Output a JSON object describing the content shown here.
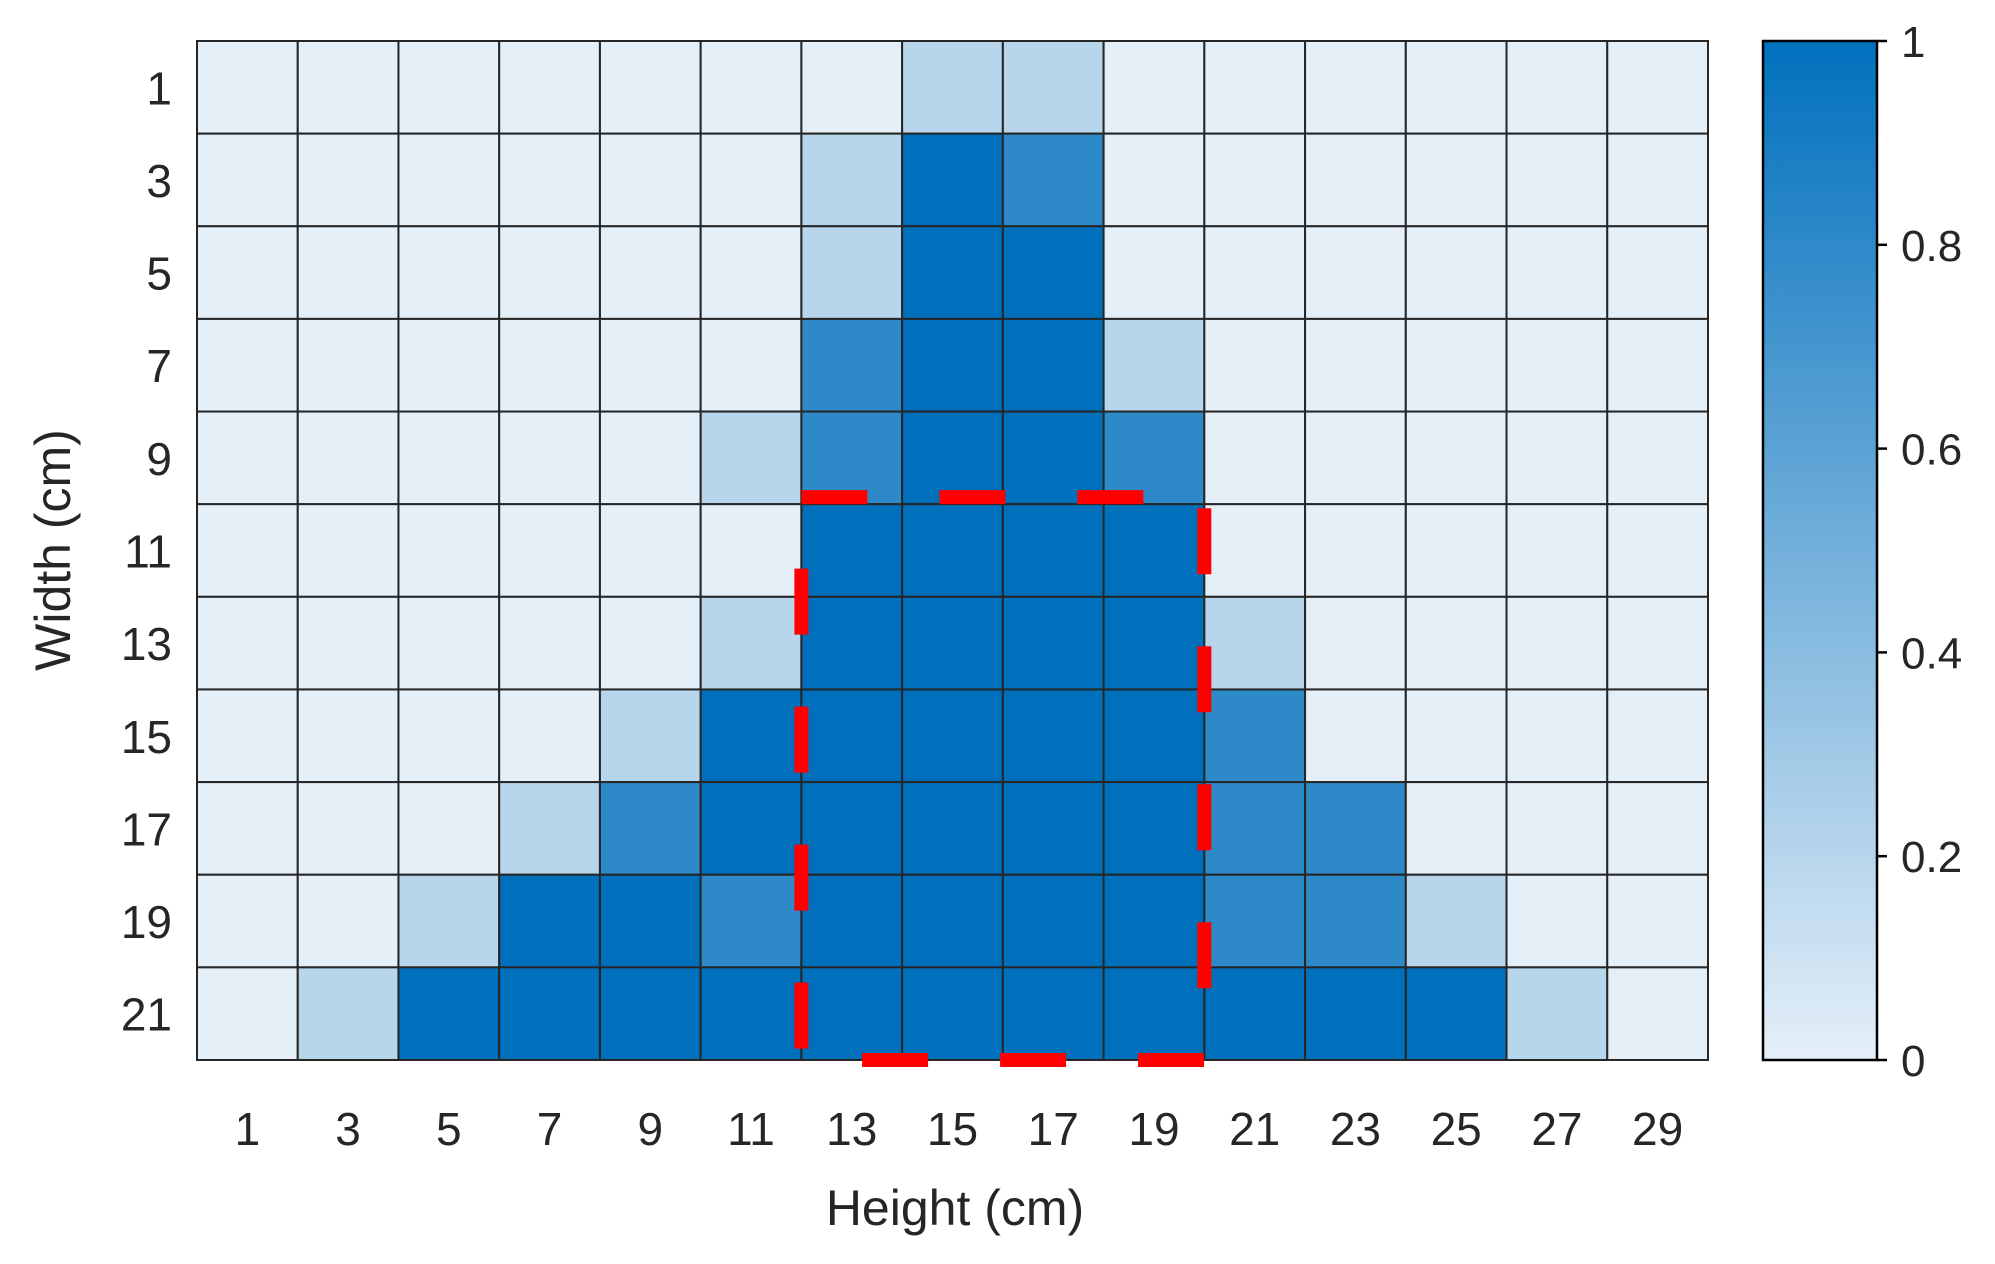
{
  "chart_data": {
    "type": "heatmap",
    "title": "",
    "xlabel": "Height (cm)",
    "ylabel": "Width (cm)",
    "x_ticks": [
      "1",
      "3",
      "5",
      "7",
      "9",
      "11",
      "13",
      "15",
      "17",
      "19",
      "21",
      "23",
      "25",
      "27",
      "29"
    ],
    "y_ticks": [
      "1",
      "3",
      "5",
      "7",
      "9",
      "11",
      "13",
      "15",
      "17",
      "19",
      "21"
    ],
    "values": [
      [
        0,
        0,
        0,
        0,
        0,
        0,
        0,
        0.2,
        0.2,
        0,
        0,
        0,
        0,
        0,
        0
      ],
      [
        0,
        0,
        0,
        0,
        0,
        0,
        0.2,
        1,
        0.8,
        0,
        0,
        0,
        0,
        0,
        0
      ],
      [
        0,
        0,
        0,
        0,
        0,
        0,
        0.2,
        1,
        1,
        0,
        0,
        0,
        0,
        0,
        0
      ],
      [
        0,
        0,
        0,
        0,
        0,
        0,
        0.8,
        1,
        1,
        0.2,
        0,
        0,
        0,
        0,
        0
      ],
      [
        0,
        0,
        0,
        0,
        0,
        0.2,
        0.8,
        1,
        1,
        0.8,
        0,
        0,
        0,
        0,
        0
      ],
      [
        0,
        0,
        0,
        0,
        0,
        0,
        1,
        1,
        1,
        1,
        0,
        0,
        0,
        0,
        0
      ],
      [
        0,
        0,
        0,
        0,
        0,
        0.2,
        1,
        1,
        1,
        1,
        0.2,
        0,
        0,
        0,
        0
      ],
      [
        0,
        0,
        0,
        0,
        0.2,
        1,
        1,
        1,
        1,
        1,
        0.8,
        0,
        0,
        0,
        0
      ],
      [
        0,
        0,
        0,
        0.2,
        0.8,
        1,
        1,
        1,
        1,
        1,
        0.8,
        0.8,
        0,
        0,
        0
      ],
      [
        0,
        0,
        0.2,
        1,
        1,
        0.8,
        1,
        1,
        1,
        1,
        0.8,
        0.8,
        0.2,
        0,
        0
      ],
      [
        0,
        0.2,
        1,
        1,
        1,
        1,
        1,
        1,
        1,
        1,
        1,
        1,
        1,
        0.2,
        0
      ]
    ],
    "colorbar": {
      "min": 0,
      "max": 1,
      "ticks": [
        "0",
        "0.2",
        "0.4",
        "0.6",
        "0.8",
        "1"
      ],
      "low_color": "#e5eff8",
      "high_color": "#0070bd"
    },
    "highlight_region": {
      "x_range": [
        "13",
        "19"
      ],
      "y_range": [
        "11",
        "21"
      ],
      "color": "#ff0000",
      "style": "dashed"
    },
    "grid": true,
    "legend": "colorbar-right"
  }
}
